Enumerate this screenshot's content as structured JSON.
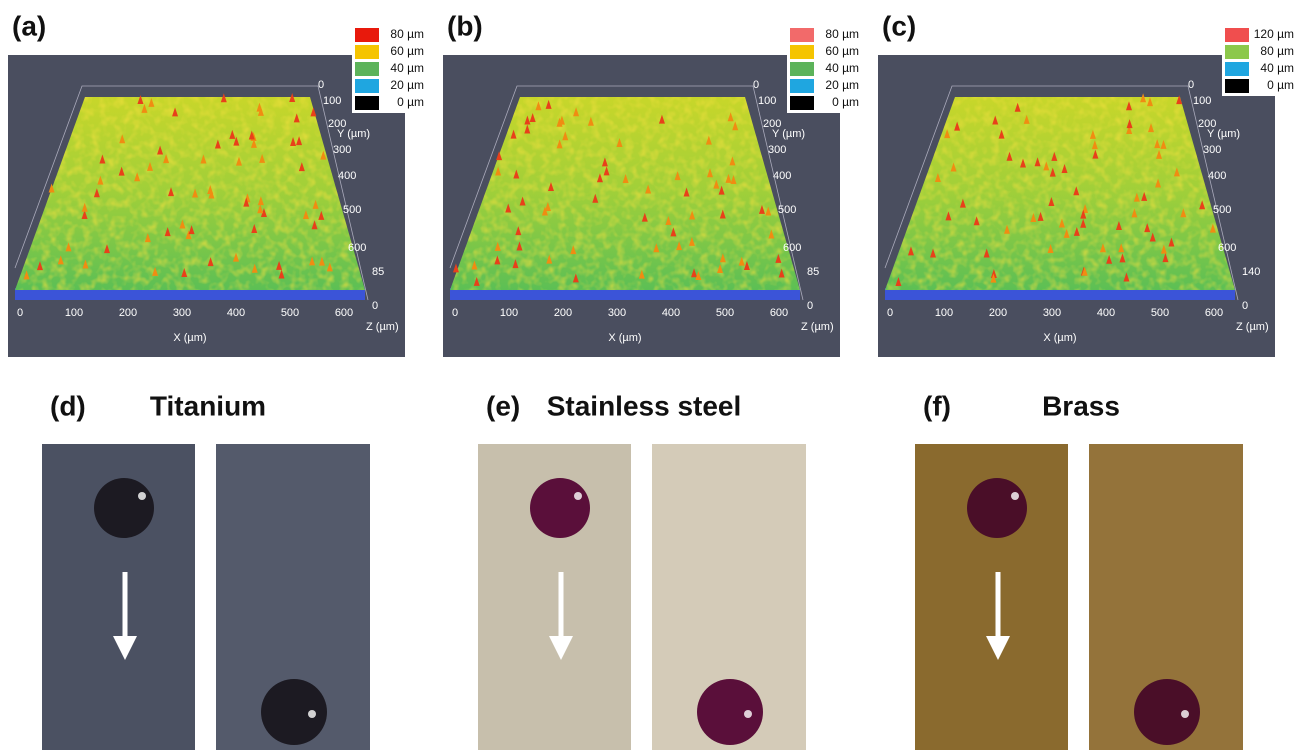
{
  "panels": [
    {
      "label": "(a)",
      "legend": [
        {
          "label": "80 µm",
          "color": "#e8190c"
        },
        {
          "label": "60 µm",
          "color": "#f5c400"
        },
        {
          "label": "40 µm",
          "color": "#5cb35a"
        },
        {
          "label": "20 µm",
          "color": "#1fa6e0"
        },
        {
          "label": "0 µm",
          "color": "#000000"
        }
      ],
      "x_ticks": [
        0,
        100,
        200,
        300,
        400,
        500,
        600
      ],
      "x_label": "X (µm)",
      "y_ticks": [
        0,
        100,
        200,
        300,
        400,
        500,
        600
      ],
      "y_label": "Y (µm)",
      "z_ticks": [
        85,
        0
      ],
      "z_label": "Z (µm)"
    },
    {
      "label": "(b)",
      "legend": [
        {
          "label": "80 µm",
          "color": "#f26a6a"
        },
        {
          "label": "60 µm",
          "color": "#f5c400"
        },
        {
          "label": "40 µm",
          "color": "#5cb35a"
        },
        {
          "label": "20 µm",
          "color": "#1fa6e0"
        },
        {
          "label": "0 µm",
          "color": "#000000"
        }
      ],
      "x_ticks": [
        0,
        100,
        200,
        300,
        400,
        500,
        600
      ],
      "x_label": "X (µm)",
      "y_ticks": [
        0,
        100,
        200,
        300,
        400,
        500,
        600
      ],
      "y_label": "Y (µm)",
      "z_ticks": [
        85,
        0
      ],
      "z_label": "Z (µm)"
    },
    {
      "label": "(c)",
      "legend": [
        {
          "label": "120 µm",
          "color": "#f04e4e"
        },
        {
          "label": "80 µm",
          "color": "#8cc84b"
        },
        {
          "label": "40 µm",
          "color": "#1fa6e0"
        },
        {
          "label": "0 µm",
          "color": "#000000"
        }
      ],
      "x_ticks": [
        0,
        100,
        200,
        300,
        400,
        500,
        600
      ],
      "x_label": "X (µm)",
      "y_ticks": [
        0,
        100,
        200,
        300,
        400,
        500,
        600
      ],
      "y_label": "Y (µm)",
      "z_ticks": [
        140,
        0
      ],
      "z_label": "Z (µm)"
    }
  ],
  "photos": [
    {
      "label": "(d)",
      "title": "Titanium"
    },
    {
      "label": "(e)",
      "title": "Stainless steel"
    },
    {
      "label": "(f)",
      "title": "Brass"
    }
  ]
}
